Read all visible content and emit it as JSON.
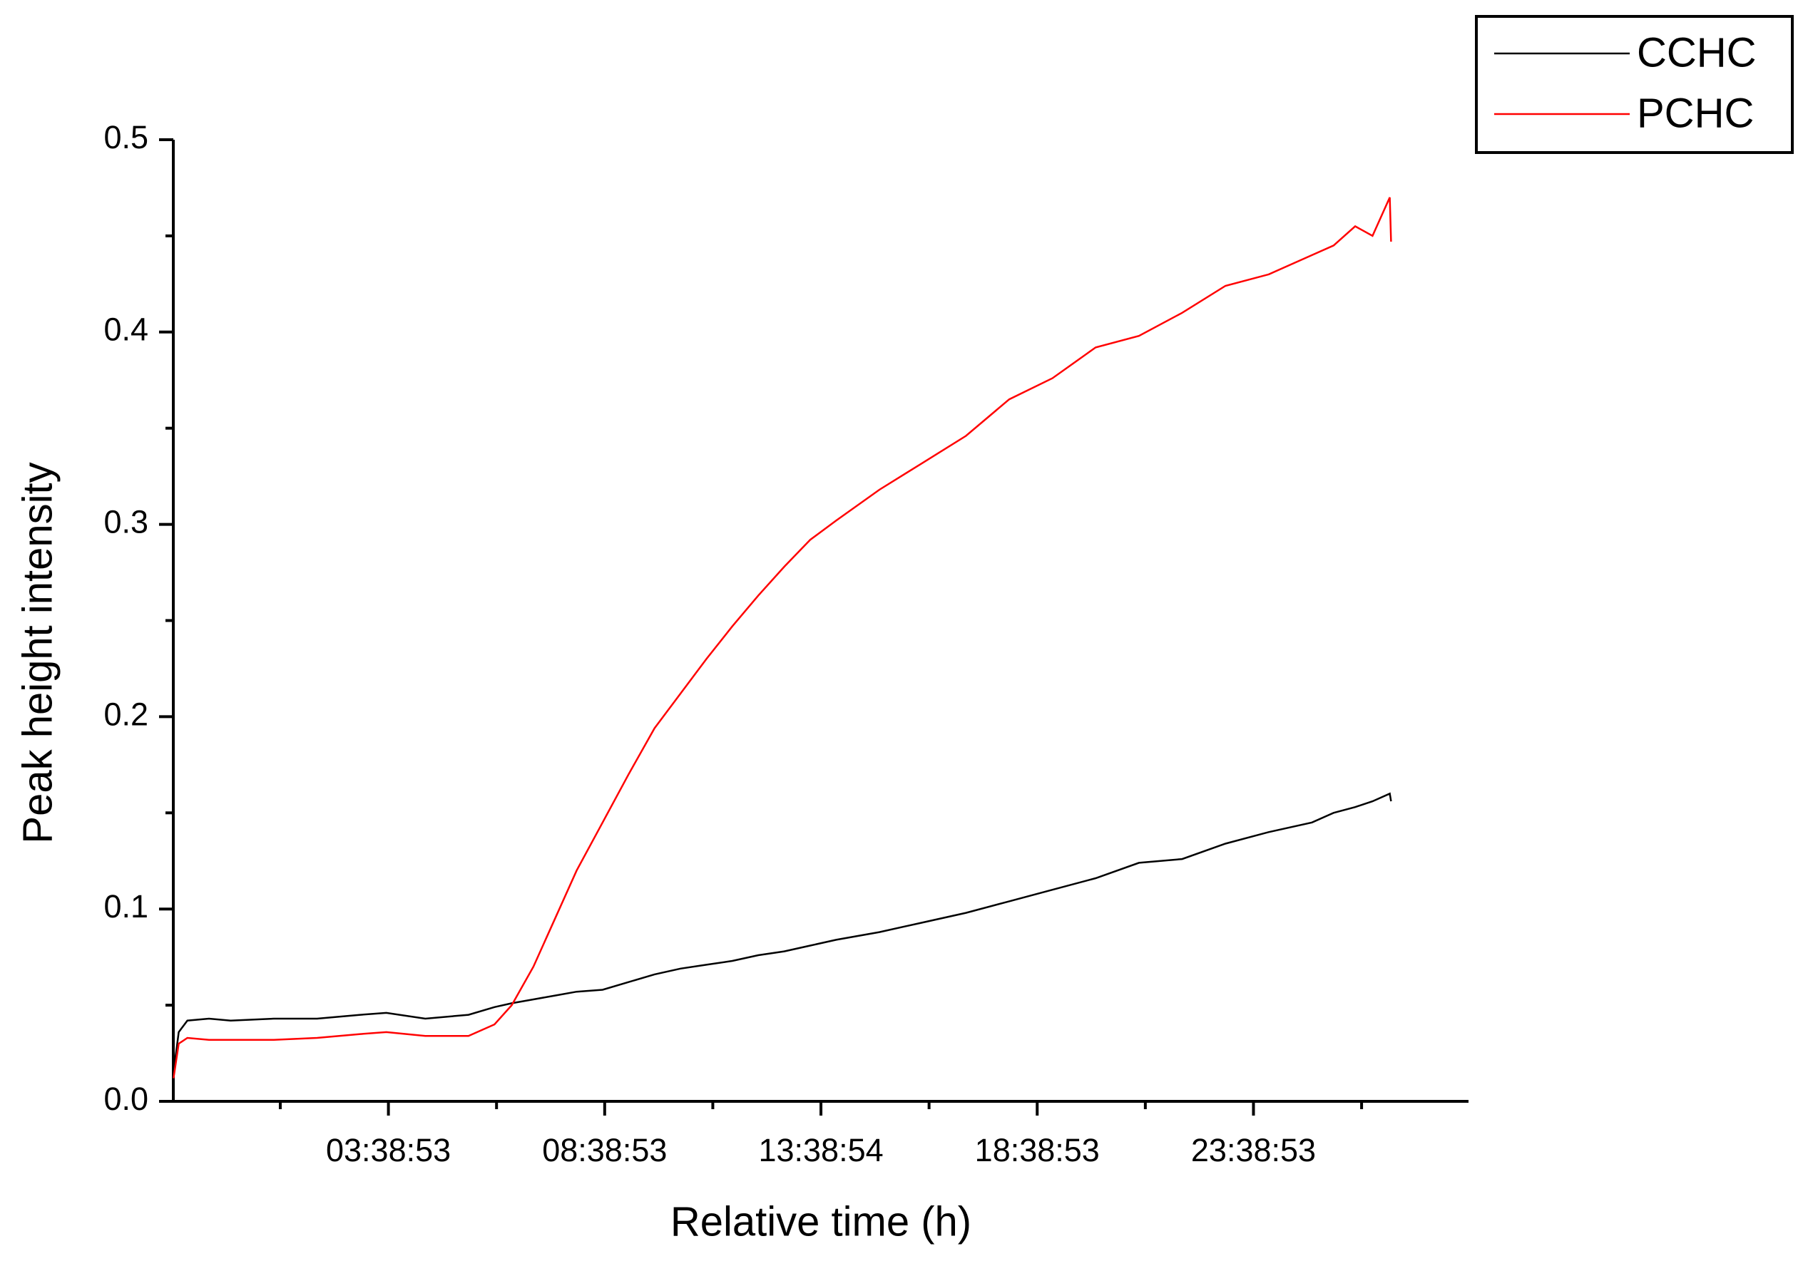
{
  "chart_data": {
    "type": "line",
    "x_label": "Relative time (h)",
    "y_label": "Peak height intensity",
    "x": [
      -1.32,
      -1.2,
      -1.0,
      -0.5,
      0,
      1,
      2,
      3,
      3.6,
      4.5,
      5.5,
      6.1,
      6.5,
      7,
      7.5,
      8,
      8.6,
      9.2,
      9.8,
      10.4,
      11,
      11.6,
      12.2,
      12.8,
      13.4,
      14,
      15,
      16,
      17,
      18,
      19,
      20,
      21,
      22,
      23,
      24,
      25,
      25.5,
      26,
      26.4,
      26.8,
      26.83
    ],
    "series": [
      {
        "name": "CCHC",
        "color": "#000000",
        "values": [
          0.015,
          0.036,
          0.042,
          0.043,
          0.042,
          0.043,
          0.043,
          0.045,
          0.046,
          0.043,
          0.045,
          0.049,
          0.051,
          0.053,
          0.055,
          0.057,
          0.058,
          0.062,
          0.066,
          0.069,
          0.071,
          0.073,
          0.076,
          0.078,
          0.081,
          0.084,
          0.088,
          0.093,
          0.098,
          0.104,
          0.11,
          0.116,
          0.124,
          0.126,
          0.134,
          0.14,
          0.145,
          0.15,
          0.153,
          0.156,
          0.16,
          0.156
        ]
      },
      {
        "name": "PCHC",
        "color": "#ff0000",
        "values": [
          0.012,
          0.03,
          0.033,
          0.032,
          0.032,
          0.032,
          0.033,
          0.035,
          0.036,
          0.034,
          0.034,
          0.04,
          0.05,
          0.07,
          0.095,
          0.12,
          0.145,
          0.17,
          0.194,
          0.212,
          0.23,
          0.247,
          0.263,
          0.278,
          0.292,
          0.302,
          0.318,
          0.332,
          0.346,
          0.365,
          0.376,
          0.392,
          0.398,
          0.41,
          0.424,
          0.43,
          0.44,
          0.445,
          0.455,
          0.45,
          0.47,
          0.447
        ]
      }
    ],
    "xlim": [
      -1.325,
      28.62
    ],
    "xticks": [
      {
        "value": 3.6481,
        "label": "03:38:53"
      },
      {
        "value": 8.6481,
        "label": "08:38:53"
      },
      {
        "value": 13.6483,
        "label": "13:38:54"
      },
      {
        "value": 18.6481,
        "label": "18:38:53"
      },
      {
        "value": 23.6481,
        "label": "23:38:53"
      }
    ],
    "xminorticks": [
      1.148,
      6.148,
      11.148,
      16.148,
      21.148,
      26.148
    ],
    "ylim": [
      0,
      0.5
    ],
    "yticks": [
      {
        "value": 0,
        "label": "0.0"
      },
      0.1,
      0.2,
      0.3,
      0.4,
      0.5
    ],
    "yminorticks": [
      0.05,
      0.15,
      0.25,
      0.35,
      0.45
    ],
    "legend": "top-right"
  }
}
